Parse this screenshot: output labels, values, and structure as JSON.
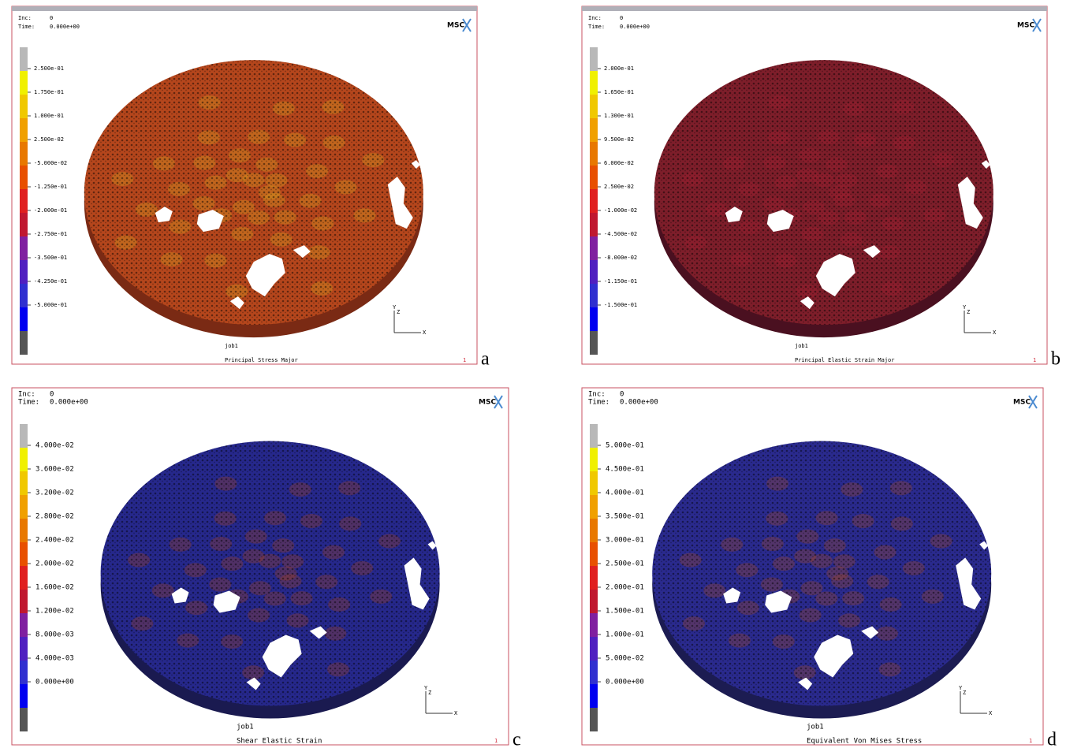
{
  "panels": [
    {
      "inc_label": "Inc:",
      "inc": "0",
      "time_label": "Time:",
      "time": "0.000e+00",
      "logo": "MSC",
      "legend": [
        "2.500e-01",
        "1.750e-01",
        "1.000e-01",
        "2.500e-02",
        "-5.000e-02",
        "-1.250e-01",
        "-2.000e-01",
        "-2.750e-01",
        "-3.500e-01",
        "-4.250e-01",
        "-5.000e-01"
      ],
      "job": "job1",
      "result": "Principal Stress Major",
      "index": "1",
      "axes": [
        "Y",
        "Z",
        "X"
      ],
      "letter": "a"
    },
    {
      "inc_label": "Inc:",
      "inc": "0",
      "time_label": "Time:",
      "time": "0.000e+00",
      "logo": "MSC",
      "legend": [
        "2.000e-01",
        "1.650e-01",
        "1.300e-01",
        "9.500e-02",
        "6.000e-02",
        "2.500e-02",
        "-1.000e-02",
        "-4.500e-02",
        "-8.000e-02",
        "-1.150e-01",
        "-1.500e-01"
      ],
      "job": "job1",
      "result": "Principal Elastic Strain Major",
      "index": "1",
      "axes": [
        "Y",
        "Z",
        "X"
      ],
      "letter": "b"
    },
    {
      "inc_label": "Inc:",
      "inc": "0",
      "time_label": "Time:",
      "time": "0.000e+00",
      "logo": "MSC",
      "legend": [
        "4.000e-02",
        "3.600e-02",
        "3.200e-02",
        "2.800e-02",
        "2.400e-02",
        "2.000e-02",
        "1.600e-02",
        "1.200e-02",
        "8.000e-03",
        "4.000e-03",
        "0.000e+00"
      ],
      "job": "job1",
      "result": "Shear Elastic Strain",
      "index": "1",
      "axes": [
        "Y",
        "Z",
        "X"
      ],
      "letter": "c"
    },
    {
      "inc_label": "Inc:",
      "inc": "0",
      "time_label": "Time:",
      "time": "0.000e+00",
      "logo": "MSC",
      "legend": [
        "5.000e-01",
        "4.500e-01",
        "4.000e-01",
        "3.500e-01",
        "3.000e-01",
        "2.500e-01",
        "2.000e-01",
        "1.500e-01",
        "1.000e-01",
        "5.000e-02",
        "0.000e+00"
      ],
      "job": "job1",
      "result": "Equivalent Von Mises Stress",
      "index": "1",
      "axes": [
        "Y",
        "Z",
        "X"
      ],
      "letter": "d"
    }
  ]
}
